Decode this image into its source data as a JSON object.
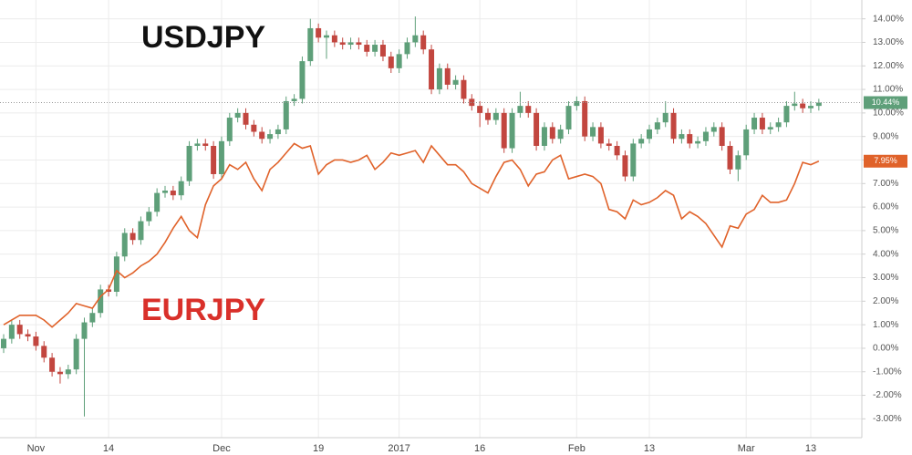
{
  "chart_data": {
    "type": "candlestick",
    "categories": [
      null,
      null,
      null,
      null,
      "Nov",
      null,
      null,
      null,
      null,
      null,
      null,
      null,
      null,
      "14",
      null,
      null,
      null,
      null,
      null,
      null,
      null,
      null,
      null,
      null,
      null,
      null,
      null,
      "Dec",
      null,
      null,
      null,
      null,
      null,
      null,
      null,
      null,
      null,
      null,
      null,
      "19",
      null,
      null,
      null,
      null,
      null,
      null,
      null,
      null,
      null,
      "2017",
      null,
      null,
      null,
      null,
      null,
      null,
      null,
      null,
      null,
      "16",
      null,
      null,
      null,
      null,
      null,
      null,
      null,
      null,
      null,
      null,
      null,
      "Feb",
      null,
      null,
      null,
      null,
      null,
      null,
      null,
      null,
      "13",
      null,
      null,
      null,
      null,
      null,
      null,
      null,
      null,
      null,
      null,
      null,
      "Mar",
      null,
      null,
      null,
      null,
      null,
      null,
      null,
      "13",
      null
    ],
    "ylim": [
      -3.8,
      14.8
    ],
    "yticks": [
      {
        "value": 14,
        "label": "14.00%"
      },
      {
        "value": 13,
        "label": "13.00%"
      },
      {
        "value": 12,
        "label": "12.00%"
      },
      {
        "value": 11,
        "label": "11.00%"
      },
      {
        "value": 10,
        "label": "10.00%"
      },
      {
        "value": 9,
        "label": "9.00%"
      },
      {
        "value": 8,
        "label": "8.00%"
      },
      {
        "value": 7,
        "label": "7.00%"
      },
      {
        "value": 6,
        "label": "6.00%"
      },
      {
        "value": 5,
        "label": "5.00%"
      },
      {
        "value": 4,
        "label": "4.00%"
      },
      {
        "value": 3,
        "label": "3.00%"
      },
      {
        "value": 2,
        "label": "2.00%"
      },
      {
        "value": 1,
        "label": "1.00%"
      },
      {
        "value": 0,
        "label": "0.00%"
      },
      {
        "value": -1,
        "label": "-1.00%"
      },
      {
        "value": -2,
        "label": "-2.00%"
      },
      {
        "value": -3,
        "label": "-3.00%"
      }
    ],
    "grid": true,
    "series": [
      {
        "name": "USDJPY",
        "type": "candlestick",
        "up_color": "#5e9f79",
        "down_color": "#c2463f",
        "label_color": "#111111",
        "last_label": "10.44%",
        "open": [
          0.0,
          0.4,
          1.0,
          0.6,
          0.5,
          0.1,
          -0.4,
          -1.0,
          -1.1,
          -0.9,
          0.4,
          1.1,
          1.5,
          2.5,
          2.4,
          3.9,
          4.9,
          4.6,
          5.4,
          5.8,
          6.6,
          6.7,
          6.5,
          7.1,
          8.6,
          8.7,
          8.6,
          7.4,
          8.8,
          9.8,
          10.0,
          9.5,
          9.2,
          8.9,
          9.1,
          9.3,
          10.5,
          10.6,
          12.2,
          13.6,
          13.2,
          13.3,
          13.0,
          12.9,
          13.0,
          12.9,
          12.6,
          12.9,
          12.4,
          11.9,
          12.5,
          13.0,
          13.3,
          12.7,
          11.0,
          11.9,
          11.2,
          11.4,
          10.6,
          10.3,
          10.0,
          9.7,
          10.0,
          8.5,
          10.0,
          10.3,
          10.0,
          8.6,
          9.4,
          8.9,
          9.3,
          10.3,
          10.5,
          9.0,
          9.4,
          8.7,
          8.6,
          8.2,
          7.3,
          8.7,
          8.9,
          9.3,
          9.6,
          10.0,
          8.9,
          9.1,
          8.7,
          8.8,
          9.2,
          9.4,
          8.6,
          7.6,
          8.2,
          9.3,
          9.8,
          9.3,
          9.4,
          9.6,
          10.3,
          10.4,
          10.2,
          10.3
        ],
        "high": [
          0.6,
          1.2,
          1.2,
          0.8,
          0.7,
          0.3,
          -0.2,
          -0.8,
          -0.7,
          0.6,
          1.3,
          1.7,
          2.7,
          2.7,
          4.1,
          5.1,
          5.1,
          5.6,
          6.0,
          6.8,
          6.9,
          6.9,
          7.3,
          8.8,
          8.9,
          8.9,
          8.8,
          9.0,
          10.0,
          10.2,
          10.2,
          9.7,
          9.4,
          9.3,
          9.5,
          10.7,
          10.8,
          12.4,
          14.0,
          13.8,
          13.5,
          13.5,
          13.2,
          13.2,
          13.2,
          13.1,
          13.1,
          13.1,
          12.6,
          12.7,
          13.2,
          14.1,
          13.5,
          12.9,
          12.1,
          12.1,
          11.6,
          11.6,
          10.8,
          10.5,
          10.2,
          10.2,
          10.2,
          10.2,
          10.9,
          10.5,
          10.2,
          9.6,
          9.6,
          9.5,
          10.5,
          10.7,
          10.7,
          9.6,
          9.6,
          8.9,
          8.8,
          8.4,
          8.9,
          9.1,
          9.5,
          9.8,
          10.5,
          10.2,
          9.3,
          9.3,
          9.0,
          9.4,
          9.6,
          9.6,
          8.8,
          8.4,
          9.5,
          10.0,
          10.0,
          9.6,
          9.8,
          10.5,
          10.9,
          10.6,
          10.5,
          10.6
        ],
        "low": [
          -0.2,
          0.2,
          0.4,
          0.3,
          -0.1,
          -0.6,
          -1.2,
          -1.5,
          -1.3,
          -1.1,
          -2.9,
          0.9,
          1.3,
          2.2,
          2.2,
          3.7,
          4.4,
          4.4,
          5.2,
          5.6,
          6.4,
          6.3,
          6.3,
          6.9,
          8.4,
          8.4,
          7.2,
          7.2,
          8.6,
          9.6,
          9.3,
          9.0,
          8.7,
          8.7,
          8.9,
          9.1,
          10.3,
          10.4,
          12.0,
          13.0,
          12.3,
          12.8,
          12.7,
          12.7,
          12.7,
          12.4,
          12.4,
          12.2,
          11.7,
          11.7,
          12.3,
          12.8,
          12.5,
          10.8,
          10.8,
          11.0,
          11.0,
          10.4,
          10.1,
          9.4,
          9.5,
          9.5,
          8.3,
          8.3,
          9.8,
          9.8,
          8.4,
          8.4,
          8.7,
          8.7,
          9.1,
          10.1,
          8.8,
          8.8,
          8.5,
          8.4,
          8.0,
          7.1,
          7.1,
          8.5,
          8.7,
          9.1,
          9.4,
          8.7,
          8.7,
          8.5,
          8.5,
          8.6,
          9.0,
          8.4,
          7.4,
          7.1,
          8.0,
          9.1,
          9.1,
          9.1,
          9.2,
          9.4,
          10.1,
          10.0,
          10.0,
          10.1
        ],
        "close": [
          0.4,
          1.0,
          0.6,
          0.5,
          0.1,
          -0.4,
          -1.0,
          -1.1,
          -0.9,
          0.4,
          1.1,
          1.5,
          2.5,
          2.4,
          3.9,
          4.9,
          4.6,
          5.4,
          5.8,
          6.6,
          6.7,
          6.5,
          7.1,
          8.6,
          8.7,
          8.6,
          7.4,
          8.8,
          9.8,
          10.0,
          9.5,
          9.2,
          8.9,
          9.1,
          9.3,
          10.5,
          10.6,
          12.2,
          13.6,
          13.2,
          13.3,
          13.0,
          12.9,
          13.0,
          12.9,
          12.6,
          12.9,
          12.4,
          11.9,
          12.5,
          13.0,
          13.3,
          12.7,
          11.0,
          11.9,
          11.2,
          11.4,
          10.6,
          10.3,
          10.0,
          9.7,
          10.0,
          8.5,
          10.0,
          10.3,
          10.0,
          8.6,
          9.4,
          8.9,
          9.3,
          10.3,
          10.5,
          9.0,
          9.4,
          8.7,
          8.6,
          8.2,
          7.3,
          8.7,
          8.9,
          9.3,
          9.6,
          10.0,
          8.9,
          9.1,
          8.7,
          8.8,
          9.2,
          9.4,
          8.6,
          7.6,
          8.2,
          9.3,
          9.8,
          9.3,
          9.4,
          9.6,
          10.3,
          10.4,
          10.2,
          10.3,
          10.44
        ]
      },
      {
        "name": "EURJPY",
        "type": "line",
        "color": "#e0622a",
        "label_color": "#d9302a",
        "last_label": "7.95%",
        "values": [
          1.0,
          1.2,
          1.4,
          1.4,
          1.4,
          1.2,
          0.9,
          1.2,
          1.5,
          1.9,
          1.8,
          1.7,
          2.2,
          2.5,
          3.3,
          3.0,
          3.2,
          3.5,
          3.7,
          4.0,
          4.5,
          5.1,
          5.6,
          5.0,
          4.7,
          6.1,
          6.9,
          7.2,
          7.8,
          7.6,
          7.9,
          7.2,
          6.7,
          7.6,
          7.9,
          8.3,
          8.7,
          8.5,
          8.6,
          7.4,
          7.8,
          8.0,
          8.0,
          7.9,
          8.0,
          8.2,
          7.6,
          7.9,
          8.3,
          8.2,
          8.3,
          8.4,
          7.9,
          8.6,
          8.2,
          7.8,
          7.8,
          7.5,
          7.0,
          6.8,
          6.6,
          7.3,
          7.9,
          8.0,
          7.6,
          6.9,
          7.4,
          7.5,
          8.0,
          8.2,
          7.2,
          7.3,
          7.4,
          7.3,
          7.0,
          5.9,
          5.8,
          5.5,
          6.3,
          6.1,
          6.2,
          6.4,
          6.7,
          6.5,
          5.5,
          5.8,
          5.6,
          5.3,
          4.8,
          4.3,
          5.2,
          5.1,
          5.7,
          5.9,
          6.5,
          6.2,
          6.2,
          6.3,
          7.0,
          7.9,
          7.8,
          7.95
        ]
      }
    ]
  }
}
